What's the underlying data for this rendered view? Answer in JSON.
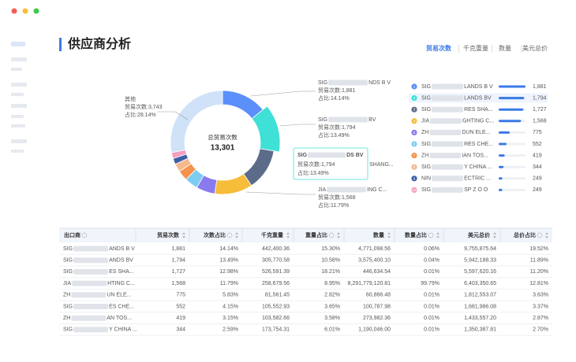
{
  "header": {
    "title": "供应商分析",
    "tabs": [
      "贸易次数",
      "千克重量",
      "数量",
      "美元总价"
    ],
    "active_tab": 0
  },
  "chart_data": {
    "type": "donut",
    "center_label": "总贸易次数",
    "center_value": "13,301",
    "highlighted": 1,
    "segments": [
      {
        "name_start": "SIG",
        "name_end": "LANDS B V",
        "value": 1881,
        "value_label": "1,881",
        "color": "#5b8ff9"
      },
      {
        "name_start": "SIG",
        "name_end": "LANDS BV",
        "value": 1794,
        "value_label": "1,794",
        "color": "#3fe0d6"
      },
      {
        "name_start": "SIG",
        "name_end": "RES SHA...",
        "value": 1727,
        "value_label": "1,727",
        "color": "#5d6b8a"
      },
      {
        "name_start": "JIA",
        "name_end": "GHTING C...",
        "value": 1568,
        "value_label": "1,568",
        "color": "#f6bd3a"
      },
      {
        "name_start": "ZH",
        "name_end": "DUN ELE...",
        "value": 775,
        "value_label": "775",
        "color": "#8a7af0"
      },
      {
        "name_start": "SIG",
        "name_end": "RES CHE...",
        "value": 552,
        "value_label": "552",
        "color": "#7dcdf2"
      },
      {
        "name_start": "ZH",
        "name_end": "IAN TOS...",
        "value": 419,
        "value_label": "419",
        "color": "#f5924b"
      },
      {
        "name_start": "SIG",
        "name_end": "Y CHINA ...",
        "value": 344,
        "value_label": "344",
        "color": "#f7b98c"
      },
      {
        "name_start": "NIN",
        "name_end": "ECTRIC ...",
        "value": 249,
        "value_label": "249",
        "color": "#3d5fa8"
      },
      {
        "name_start": "SIG",
        "name_end": "SP Z O O",
        "value": 249,
        "value_label": "249",
        "color": "#f2a0c0"
      },
      {
        "name": "其他",
        "value": 3743,
        "color": "#cfe2f8"
      }
    ],
    "callouts": [
      {
        "name_start": "SIG",
        "name_end": "NDS B V",
        "count": "贸易次数:1,881",
        "share": "占比:14.14%"
      },
      {
        "name_start": "SIG",
        "name_end": "BV",
        "count": "贸易次数:1,794",
        "share": "占比:13.49%"
      },
      {
        "name_end": "SHANG..."
      },
      {
        "name_start": "JIA",
        "name_end": "ING C...",
        "count": "贸易次数:1,568",
        "share": "占比:11.79%"
      },
      {
        "name": "其他",
        "count": "贸易次数:3,743",
        "share": "占比:28.14%"
      }
    ],
    "tooltip": {
      "name_start": "SIG",
      "name_end": "DS BV",
      "count": "贸易次数:1,794",
      "share": "占比:13.49%"
    }
  },
  "table": {
    "headers": [
      "出口商",
      "贸易次数",
      "次数占比",
      "千克重量",
      "重量占比",
      "数量",
      "数量占比",
      "美元总价",
      "总价占比"
    ],
    "rows": [
      {
        "name_start": "SIG",
        "name_end": "ANDS B V",
        "cells": [
          "1,881",
          "14.14%",
          "442,400.36",
          "15.30%",
          "4,771,098.56",
          "0.06%",
          "9,755,875.64",
          "19.52%"
        ]
      },
      {
        "name_start": "SIG",
        "name_end": "ANDS BV",
        "cells": [
          "1,794",
          "13.49%",
          "305,770.58",
          "10.58%",
          "3,575,400.10",
          "0.04%",
          "5,942,188.33",
          "11.89%"
        ]
      },
      {
        "name_start": "SIG",
        "name_end": "ES SHA...",
        "cells": [
          "1,727",
          "12.98%",
          "526,591.39",
          "18.21%",
          "446,634.54",
          "0.01%",
          "5,597,620.16",
          "11.20%"
        ]
      },
      {
        "name_start": "JIA",
        "name_end": "HTING C...",
        "cells": [
          "1,568",
          "11.79%",
          "258,679.56",
          "8.95%",
          "8,291,779,120.81",
          "99.79%",
          "6,403,350.65",
          "12.81%"
        ]
      },
      {
        "name_start": "ZH",
        "name_end": "UN ELE...",
        "cells": [
          "775",
          "5.83%",
          "81,561.45",
          "2.82%",
          "60,866.48",
          "0.01%",
          "1,812,553.07",
          "3.63%"
        ]
      },
      {
        "name_start": "SIG",
        "name_end": "ES CHE...",
        "cells": [
          "552",
          "4.15%",
          "105,552.93",
          "3.65%",
          "100,787.98",
          "0.01%",
          "1,681,986.08",
          "3.37%"
        ]
      },
      {
        "name_start": "ZH",
        "name_end": "AN TOS...",
        "cells": [
          "419",
          "3.15%",
          "103,582.66",
          "3.58%",
          "273,982.36",
          "0.01%",
          "1,433,557.20",
          "2.87%"
        ]
      },
      {
        "name_start": "SIG",
        "name_end": "Y CHINA ...",
        "cells": [
          "344",
          "2.59%",
          "173,754.31",
          "6.01%",
          "1,190,046.00",
          "0.01%",
          "1,350,387.81",
          "2.70%"
        ]
      }
    ]
  }
}
